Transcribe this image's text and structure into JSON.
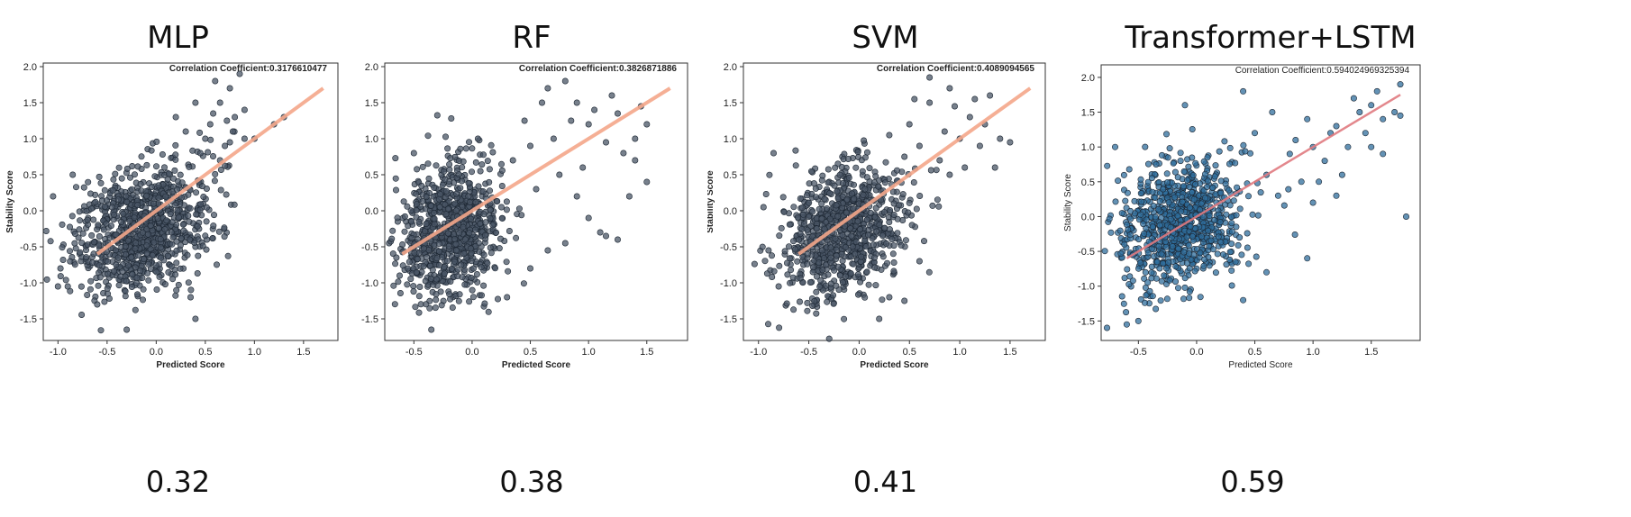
{
  "figure": {
    "panels": [
      {
        "title": "MLP",
        "score": "0.32"
      },
      {
        "title": "RF",
        "score": "0.38"
      },
      {
        "title": "SVM",
        "score": "0.41"
      },
      {
        "title": "Transformer+LSTM",
        "score": "0.59"
      }
    ]
  },
  "chart_data": [
    {
      "type": "scatter",
      "title": "MLP",
      "annotation": "Correlation Coefficient:0.3176610477",
      "xlabel": "Predicted Score",
      "ylabel": "Stability Score",
      "xlim": [
        -1.15,
        1.85
      ],
      "ylim": [
        -1.8,
        2.05
      ],
      "xticks": [
        "-1.0",
        "-0.5",
        "0.0",
        "0.5",
        "1.0",
        "1.5"
      ],
      "yticks": [
        "-1.5",
        "-1.0",
        "-0.5",
        "0.0",
        "0.5",
        "1.0",
        "1.5",
        "2.0"
      ],
      "point_color": "#4a5566",
      "line_color": "#f4a68a",
      "fit_line": {
        "x": [
          -0.6,
          1.7
        ],
        "y": [
          -0.6,
          1.7
        ]
      },
      "cloud": {
        "center": [
          -0.15,
          -0.25
        ],
        "spread": [
          0.35,
          0.42
        ],
        "count": 900
      },
      "upper_points": [
        [
          0.55,
          1.2
        ],
        [
          0.65,
          1.5
        ],
        [
          0.75,
          1.7
        ],
        [
          0.8,
          1.3
        ],
        [
          0.9,
          1.0
        ],
        [
          0.5,
          1.0
        ],
        [
          0.7,
          0.9
        ],
        [
          0.85,
          1.9
        ],
        [
          0.6,
          1.8
        ],
        [
          1.0,
          1.0
        ],
        [
          1.2,
          1.2
        ],
        [
          0.4,
          1.5
        ],
        [
          0.3,
          1.1
        ],
        [
          0.65,
          0.7
        ],
        [
          0.78,
          1.1
        ],
        [
          0.2,
          1.3
        ],
        [
          0.9,
          1.4
        ],
        [
          0.45,
          0.8
        ],
        [
          0.58,
          1.35
        ],
        [
          0.72,
          1.25
        ]
      ],
      "outliers": [
        [
          -1.05,
          0.2
        ],
        [
          -1.0,
          -1.05
        ],
        [
          -0.9,
          -1.05
        ],
        [
          -0.3,
          -1.65
        ],
        [
          0.35,
          -1.2
        ],
        [
          0.75,
          0.95
        ],
        [
          1.3,
          1.3
        ],
        [
          -0.85,
          0.5
        ],
        [
          0.4,
          -1.5
        ],
        [
          -0.6,
          -1.3
        ]
      ]
    },
    {
      "type": "scatter",
      "title": "RF",
      "annotation": "Correlation Coefficient:0.3826871886",
      "xlabel": "Predicted Score",
      "ylabel": "Stability Score",
      "xlim": [
        -0.75,
        1.85
      ],
      "ylim": [
        -1.8,
        2.05
      ],
      "xticks": [
        "-0.5",
        "0.0",
        "0.5",
        "1.0",
        "1.5"
      ],
      "yticks": [
        "-1.5",
        "-1.0",
        "-0.5",
        "0.0",
        "0.5",
        "1.0",
        "1.5",
        "2.0"
      ],
      "point_color": "#4a5566",
      "line_color": "#f4a68a",
      "fit_line": {
        "x": [
          -0.6,
          1.7
        ],
        "y": [
          -0.6,
          1.7
        ]
      },
      "cloud": {
        "center": [
          -0.2,
          -0.3
        ],
        "spread": [
          0.22,
          0.45
        ],
        "count": 850
      },
      "upper_points": [
        [
          0.6,
          1.5
        ],
        [
          0.8,
          1.8
        ],
        [
          1.0,
          1.2
        ],
        [
          1.2,
          1.6
        ],
        [
          1.4,
          1.0
        ],
        [
          1.5,
          0.4
        ],
        [
          1.3,
          0.8
        ],
        [
          0.9,
          0.2
        ],
        [
          1.1,
          -0.3
        ],
        [
          0.7,
          1.0
        ],
        [
          0.5,
          0.9
        ],
        [
          1.25,
          1.35
        ],
        [
          1.45,
          1.45
        ],
        [
          0.95,
          0.6
        ],
        [
          1.05,
          1.4
        ],
        [
          0.75,
          0.5
        ],
        [
          1.35,
          0.2
        ],
        [
          0.85,
          1.25
        ],
        [
          0.65,
          1.7
        ],
        [
          1.15,
          0.95
        ],
        [
          1.5,
          1.2
        ],
        [
          1.0,
          -0.1
        ],
        [
          0.55,
          0.3
        ],
        [
          1.25,
          -0.4
        ],
        [
          0.45,
          1.25
        ],
        [
          0.35,
          0.7
        ],
        [
          0.9,
          1.5
        ],
        [
          1.4,
          0.7
        ]
      ],
      "outliers": [
        [
          -0.65,
          -0.65
        ],
        [
          -0.5,
          0.8
        ],
        [
          -0.35,
          -1.65
        ],
        [
          0.3,
          -1.2
        ],
        [
          0.5,
          -0.8
        ],
        [
          0.65,
          -0.55
        ],
        [
          0.05,
          1.0
        ],
        [
          1.15,
          -0.35
        ],
        [
          0.8,
          -0.45
        ]
      ]
    },
    {
      "type": "scatter",
      "title": "SVM",
      "annotation": "Correlation Coefficient:0.4089094565",
      "xlabel": "Predicted Score",
      "ylabel": "Stability Score",
      "xlim": [
        -1.15,
        1.85
      ],
      "ylim": [
        -1.8,
        2.05
      ],
      "xticks": [
        "-1.0",
        "-0.5",
        "0.0",
        "0.5",
        "1.0",
        "1.5"
      ],
      "yticks": [
        "-1.5",
        "-1.0",
        "-0.5",
        "0.0",
        "0.5",
        "1.0",
        "1.5",
        "2.0"
      ],
      "point_color": "#4a5566",
      "line_color": "#f4a68a",
      "fit_line": {
        "x": [
          -0.6,
          1.7
        ],
        "y": [
          -0.6,
          1.7
        ]
      },
      "cloud": {
        "center": [
          -0.15,
          -0.25
        ],
        "spread": [
          0.3,
          0.45
        ],
        "count": 850
      },
      "upper_points": [
        [
          0.5,
          1.2
        ],
        [
          0.7,
          1.5
        ],
        [
          0.9,
          1.7
        ],
        [
          1.1,
          1.3
        ],
        [
          1.2,
          0.9
        ],
        [
          1.0,
          1.0
        ],
        [
          0.8,
          0.7
        ],
        [
          1.3,
          1.6
        ],
        [
          1.4,
          1.0
        ],
        [
          0.6,
          0.9
        ],
        [
          0.95,
          1.45
        ],
        [
          1.05,
          0.6
        ],
        [
          1.25,
          1.2
        ],
        [
          0.85,
          1.1
        ],
        [
          0.55,
          1.55
        ],
        [
          0.7,
          1.85
        ],
        [
          1.15,
          1.55
        ],
        [
          0.45,
          0.75
        ],
        [
          0.3,
          1.05
        ],
        [
          1.35,
          0.6
        ],
        [
          0.9,
          0.5
        ]
      ],
      "outliers": [
        [
          -0.95,
          0.05
        ],
        [
          -0.85,
          0.8
        ],
        [
          -0.9,
          -0.55
        ],
        [
          -0.8,
          -1.05
        ],
        [
          0.3,
          -1.2
        ],
        [
          0.45,
          -1.25
        ],
        [
          1.5,
          0.95
        ],
        [
          0.2,
          -1.5
        ],
        [
          0.6,
          -0.7
        ]
      ]
    },
    {
      "type": "scatter",
      "title": "",
      "annotation": "Correlation Coefficient:0.594024969325394",
      "xlabel": "Predicted Score",
      "ylabel": "Stability Score",
      "xlim": [
        -0.82,
        1.92
      ],
      "ylim": [
        -1.78,
        2.18
      ],
      "xticks": [
        "-0.5",
        "0.0",
        "0.5",
        "1.0",
        "1.5"
      ],
      "yticks": [
        "-1.5",
        "-1.0",
        "-0.5",
        "0.0",
        "0.5",
        "1.0",
        "1.5",
        "2.0"
      ],
      "point_color": "#2f6e9c",
      "line_color": "#e07a80",
      "fit_line": {
        "x": [
          -0.6,
          1.75
        ],
        "y": [
          -0.6,
          1.75
        ]
      },
      "cloud": {
        "center": [
          -0.15,
          -0.1
        ],
        "spread": [
          0.28,
          0.45
        ],
        "count": 850
      },
      "upper_points": [
        [
          0.6,
          0.6
        ],
        [
          0.8,
          0.9
        ],
        [
          1.0,
          1.0
        ],
        [
          1.2,
          1.3
        ],
        [
          1.4,
          1.5
        ],
        [
          1.5,
          1.6
        ],
        [
          1.6,
          1.4
        ],
        [
          1.3,
          1.0
        ],
        [
          1.1,
          0.8
        ],
        [
          0.9,
          0.5
        ],
        [
          1.45,
          1.2
        ],
        [
          1.55,
          1.8
        ],
        [
          1.75,
          1.9
        ],
        [
          1.7,
          1.5
        ],
        [
          1.25,
          0.6
        ],
        [
          1.0,
          0.2
        ],
        [
          0.7,
          0.3
        ],
        [
          1.35,
          1.7
        ],
        [
          0.95,
          1.4
        ],
        [
          1.15,
          1.2
        ],
        [
          1.6,
          0.9
        ],
        [
          0.5,
          1.2
        ],
        [
          0.65,
          1.5
        ],
        [
          1.8,
          0.0
        ],
        [
          1.05,
          0.5
        ],
        [
          0.85,
          1.1
        ],
        [
          1.2,
          0.3
        ],
        [
          1.5,
          1.0
        ]
      ],
      "outliers": [
        [
          -0.6,
          -1.55
        ],
        [
          -0.5,
          -1.5
        ],
        [
          0.6,
          -0.8
        ],
        [
          1.75,
          1.45
        ],
        [
          -0.7,
          1.0
        ],
        [
          0.4,
          -1.2
        ],
        [
          0.95,
          -0.6
        ],
        [
          -0.1,
          1.6
        ],
        [
          0.4,
          1.8
        ]
      ]
    }
  ]
}
